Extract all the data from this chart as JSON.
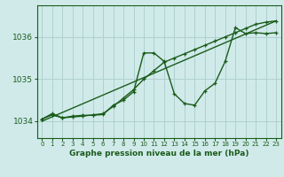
{
  "bg_color": "#d0eaea",
  "grid_color": "#b0d0d0",
  "line_color": "#1a5c1a",
  "title": "Graphe pression niveau de la mer (hPa)",
  "xlim": [
    -0.5,
    23.5
  ],
  "ylim": [
    1033.6,
    1036.75
  ],
  "yticks": [
    1034,
    1035,
    1036
  ],
  "xticks": [
    0,
    1,
    2,
    3,
    4,
    5,
    6,
    7,
    8,
    9,
    10,
    11,
    12,
    13,
    14,
    15,
    16,
    17,
    18,
    19,
    20,
    21,
    22,
    23
  ],
  "line1_x": [
    0,
    1,
    2,
    3,
    4,
    5,
    6,
    7,
    8,
    9,
    10,
    11,
    12,
    13,
    14,
    15,
    16,
    17,
    18,
    19,
    20,
    21,
    22,
    23
  ],
  "line1_y": [
    1034.05,
    1034.18,
    1034.08,
    1034.12,
    1034.14,
    1034.14,
    1034.16,
    1034.38,
    1034.5,
    1034.7,
    1035.62,
    1035.62,
    1035.42,
    1034.65,
    1034.42,
    1034.38,
    1034.72,
    1034.9,
    1035.42,
    1036.22,
    1036.08,
    1036.1,
    1036.08,
    1036.1
  ],
  "line2_x": [
    0,
    1,
    2,
    3,
    4,
    5,
    6,
    7,
    8,
    9,
    10,
    11,
    12,
    13,
    14,
    15,
    16,
    17,
    18,
    19,
    20,
    21,
    22,
    23
  ],
  "line2_y": [
    1034.05,
    1034.15,
    1034.08,
    1034.1,
    1034.12,
    1034.15,
    1034.18,
    1034.35,
    1034.55,
    1034.75,
    1035.0,
    1035.2,
    1035.4,
    1035.5,
    1035.6,
    1035.7,
    1035.8,
    1035.9,
    1036.0,
    1036.1,
    1036.2,
    1036.3,
    1036.35,
    1036.38
  ],
  "line3_x": [
    0,
    23
  ],
  "line3_y": [
    1034.0,
    1036.38
  ]
}
